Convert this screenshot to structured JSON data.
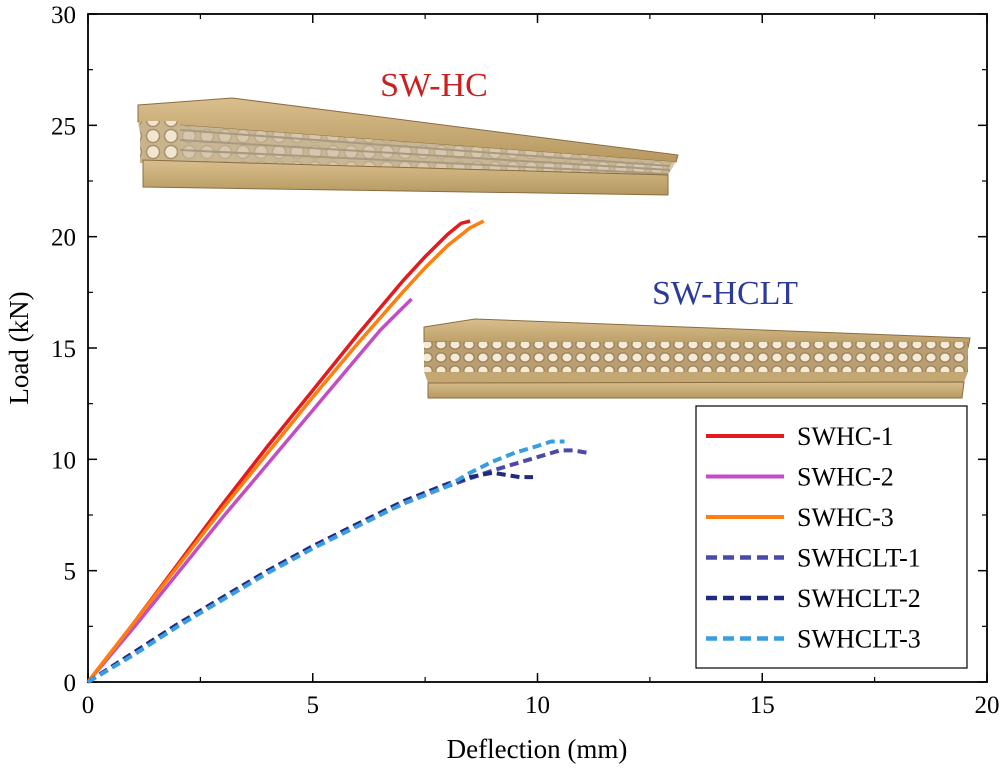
{
  "chart_data": {
    "type": "line",
    "title": "",
    "xlabel": "Deflection (mm)",
    "ylabel": "Load (kN)",
    "xlim": [
      0,
      20
    ],
    "ylim": [
      0,
      30
    ],
    "xticks": [
      0,
      5,
      10,
      15,
      20
    ],
    "yticks": [
      0,
      5,
      10,
      15,
      20,
      25,
      30
    ],
    "grid": false,
    "legend_position": "bottom-right",
    "series": [
      {
        "name": "SWHC-1",
        "color": "#e41a1c",
        "style": "solid",
        "x": [
          0,
          1,
          2,
          3,
          4,
          5,
          6,
          7,
          7.5,
          8,
          8.3,
          8.5
        ],
        "y": [
          0,
          2.6,
          5.3,
          8.0,
          10.6,
          13.1,
          15.6,
          18.0,
          19.1,
          20.1,
          20.6,
          20.7
        ]
      },
      {
        "name": "SWHC-2",
        "color": "#c34ec4",
        "style": "solid",
        "x": [
          0,
          1,
          2,
          3,
          4,
          5,
          6,
          6.5,
          7,
          7.2
        ],
        "y": [
          0,
          2.4,
          4.9,
          7.4,
          9.8,
          12.2,
          14.6,
          15.8,
          16.8,
          17.2
        ]
      },
      {
        "name": "SWHC-3",
        "color": "#ff7f0e",
        "style": "solid",
        "x": [
          0,
          1,
          2,
          3,
          4,
          5,
          6,
          7,
          7.5,
          8,
          8.5,
          8.8
        ],
        "y": [
          0,
          2.6,
          5.2,
          7.8,
          10.3,
          12.8,
          15.2,
          17.5,
          18.6,
          19.6,
          20.4,
          20.7
        ]
      },
      {
        "name": "SWHCLT-1",
        "color": "#4a4aa8",
        "style": "dashed",
        "x": [
          0,
          1,
          2,
          3,
          4,
          5,
          6,
          7,
          8,
          9,
          9.5,
          10,
          10.5,
          10.8,
          11.1
        ],
        "y": [
          0,
          1.3,
          2.6,
          3.8,
          5.0,
          6.1,
          7.1,
          8.0,
          8.8,
          9.5,
          9.8,
          10.1,
          10.4,
          10.4,
          10.3
        ]
      },
      {
        "name": "SWHCLT-2",
        "color": "#1f2a80",
        "style": "dashed",
        "x": [
          0,
          1,
          2,
          3,
          4,
          5,
          6,
          7,
          8,
          8.5,
          9,
          9.3,
          9.6,
          9.9
        ],
        "y": [
          0,
          1.3,
          2.6,
          3.8,
          5.0,
          6.1,
          7.1,
          8.1,
          8.9,
          9.2,
          9.4,
          9.3,
          9.2,
          9.2
        ]
      },
      {
        "name": "SWHCLT-3",
        "color": "#3a9de0",
        "style": "dashed",
        "x": [
          0,
          1,
          2,
          3,
          4,
          5,
          6,
          7,
          8,
          8.5,
          9,
          9.5,
          10,
          10.3,
          10.6
        ],
        "y": [
          0,
          1.2,
          2.5,
          3.7,
          4.9,
          6.0,
          7.0,
          8.0,
          8.8,
          9.4,
          9.9,
          10.3,
          10.6,
          10.8,
          10.8
        ]
      }
    ],
    "annotations": [
      {
        "text": "SW-HC",
        "color": "#cc1f1f"
      },
      {
        "text": "SW-HCLT",
        "color": "#2c3a9a"
      }
    ]
  }
}
